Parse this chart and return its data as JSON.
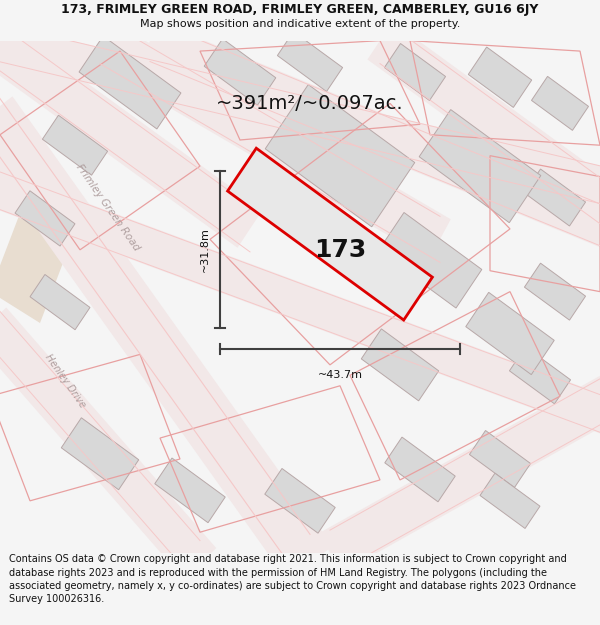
{
  "title_line1": "173, FRIMLEY GREEN ROAD, FRIMLEY GREEN, CAMBERLEY, GU16 6JY",
  "title_line2": "Map shows position and indicative extent of the property.",
  "area_text": "~391m²/~0.097ac.",
  "width_label": "~43.7m",
  "height_label": "~31.8m",
  "property_number": "173",
  "footer_text": "Contains OS data © Crown copyright and database right 2021. This information is subject to Crown copyright and database rights 2023 and is reproduced with the permission of HM Land Registry. The polygons (including the associated geometry, namely x, y co-ordinates) are subject to Crown copyright and database rights 2023 Ordnance Survey 100026316.",
  "bg_color": "#f5f5f5",
  "map_bg": "#ffffff",
  "road_line_color": "#f5c8c8",
  "road_fill_color": "#f5f0f0",
  "building_fill": "#d8d8d8",
  "building_edge": "#b8a8a8",
  "property_fill": "#e8e8e8",
  "property_edge": "#dd0000",
  "road_label_color": "#b0a0a0",
  "dim_color": "#404040",
  "text_color": "#111111",
  "title_fontsize": 9,
  "subtitle_fontsize": 8,
  "footer_fontsize": 7.0,
  "area_fontsize": 14,
  "num_fontsize": 18,
  "dim_fontsize": 8
}
